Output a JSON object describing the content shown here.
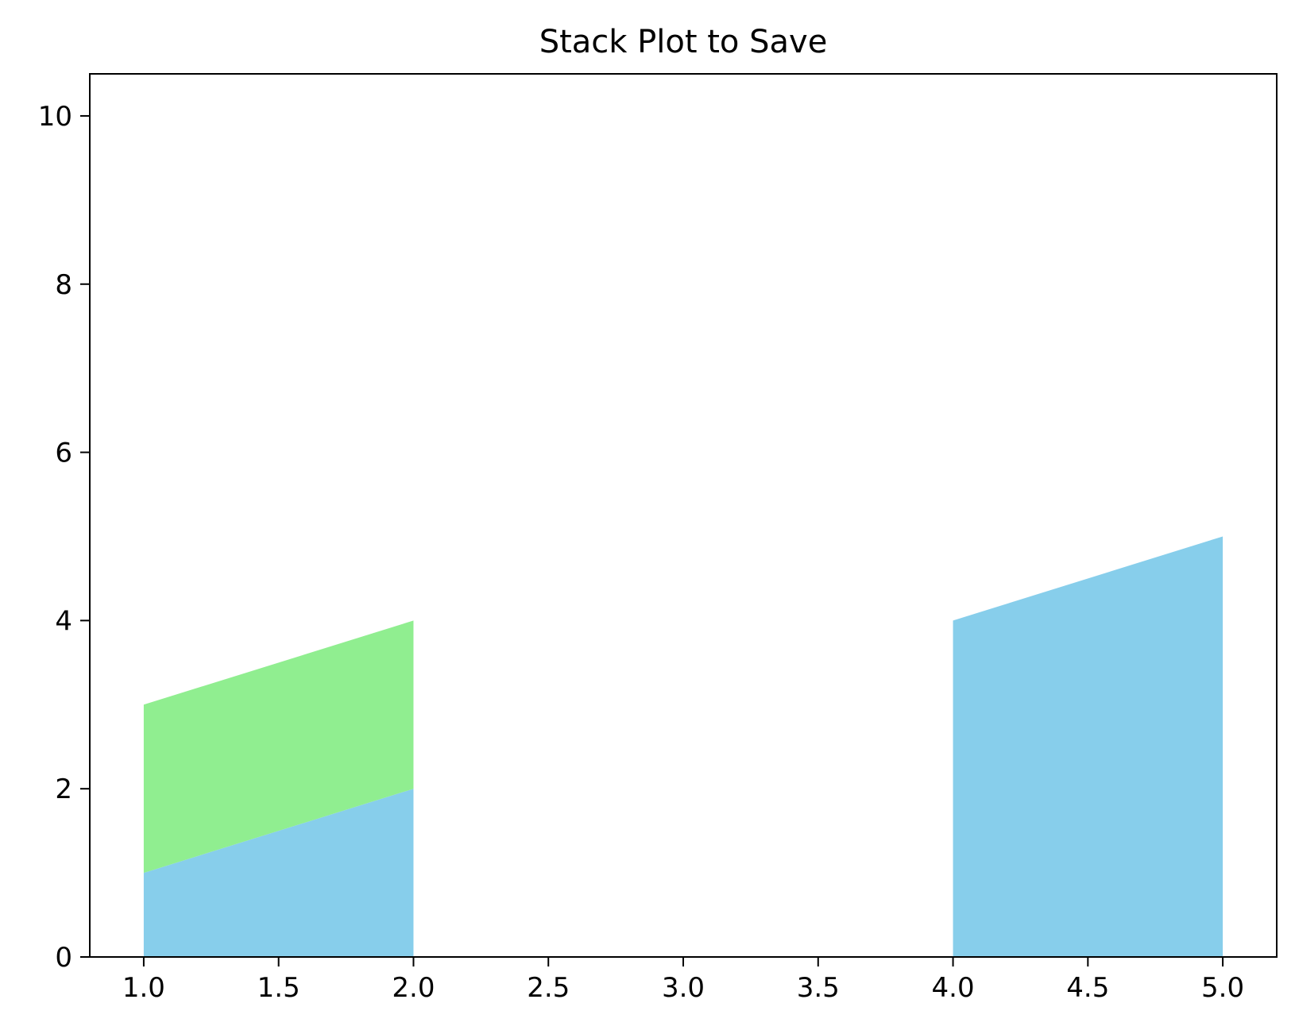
{
  "chart_data": {
    "type": "area",
    "title": "Stack Plot to Save",
    "xlabel": "",
    "ylabel": "",
    "x": [
      1,
      2,
      3,
      4,
      5
    ],
    "series": [
      {
        "values": [
          1,
          2,
          null,
          4,
          5
        ],
        "color": "#87ceeb"
      },
      {
        "values": [
          2,
          2,
          null,
          null,
          null
        ],
        "color": "#90ee90"
      }
    ],
    "xlim": [
      0.8,
      5.2
    ],
    "ylim": [
      0,
      10.5
    ],
    "xticks": [
      1.0,
      1.5,
      2.0,
      2.5,
      3.0,
      3.5,
      4.0,
      4.5,
      5.0
    ],
    "xtick_labels": [
      "1.0",
      "1.5",
      "2.0",
      "2.5",
      "3.0",
      "3.5",
      "4.0",
      "4.5",
      "5.0"
    ],
    "yticks": [
      0,
      2,
      4,
      6,
      8,
      10
    ],
    "ytick_labels": [
      "0",
      "2",
      "4",
      "6",
      "8",
      "10"
    ],
    "grid": false,
    "legend": "none"
  }
}
